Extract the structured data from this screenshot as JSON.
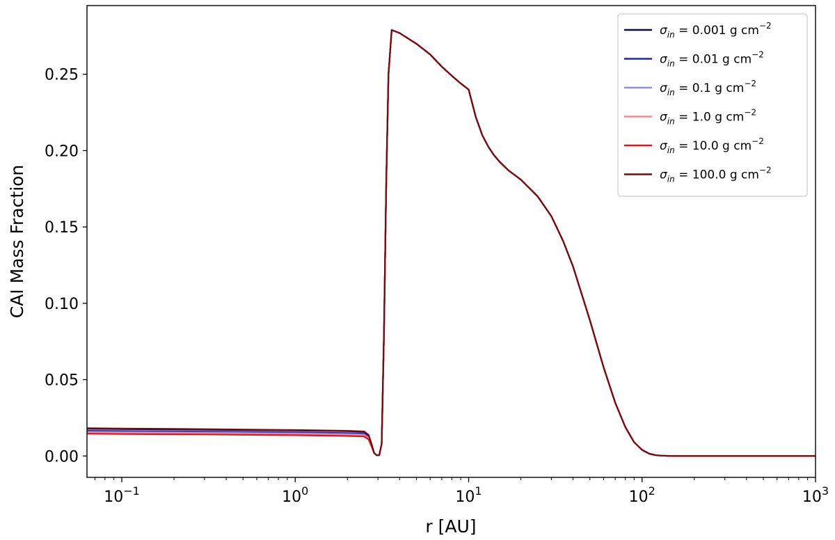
{
  "chart_data": {
    "type": "line",
    "title": "",
    "xlabel": "r [AU]",
    "ylabel": "CAI Mass Fraction",
    "xscale": "log",
    "xlim": [
      0.063,
      1000
    ],
    "ylim": [
      -0.014,
      0.295
    ],
    "grid": false,
    "legend_position": "top-right",
    "x_ticks": [
      {
        "value": 0.1,
        "base": "10",
        "exp": "−1"
      },
      {
        "value": 1,
        "base": "10",
        "exp": "0"
      },
      {
        "value": 10,
        "base": "10",
        "exp": "1"
      },
      {
        "value": 100,
        "base": "10",
        "exp": "2"
      },
      {
        "value": 1000,
        "base": "10",
        "exp": "3"
      }
    ],
    "y_ticks": [
      {
        "value": 0.0,
        "label": "0.00"
      },
      {
        "value": 0.05,
        "label": "0.05"
      },
      {
        "value": 0.1,
        "label": "0.10"
      },
      {
        "value": 0.15,
        "label": "0.15"
      },
      {
        "value": 0.2,
        "label": "0.20"
      },
      {
        "value": 0.25,
        "label": "0.25"
      }
    ],
    "shared_tail": {
      "x": [
        2.95,
        3.05,
        3.15,
        3.25,
        3.35,
        3.45,
        3.6,
        4.0,
        5.0,
        6.0,
        7.0,
        8.0,
        9.0,
        10.0,
        11.0,
        12.0,
        13.0,
        14.0,
        15.0,
        17.0,
        20.0,
        25.0,
        30.0,
        35.0,
        40.0,
        50.0,
        60.0,
        70.0,
        80.0,
        90.0,
        100.0,
        110.0,
        120.0,
        130.0,
        150.0,
        200.0,
        300.0,
        500.0,
        1000.0
      ],
      "y": [
        0.0005,
        0.0005,
        0.008,
        0.08,
        0.18,
        0.25,
        0.279,
        0.277,
        0.27,
        0.263,
        0.255,
        0.249,
        0.244,
        0.24,
        0.222,
        0.21,
        0.2025,
        0.197,
        0.193,
        0.187,
        0.181,
        0.17,
        0.157,
        0.141,
        0.124,
        0.089,
        0.058,
        0.035,
        0.019,
        0.009,
        0.004,
        0.0015,
        0.0005,
        0.0002,
        0.0,
        0.0,
        0.0,
        0.0,
        0.0
      ]
    },
    "series": [
      {
        "name": "σ_in = 0.001 g cm^−2",
        "label_main": "0.001",
        "color": "#0a0a3c",
        "x": [
          0.063,
          0.1,
          0.3,
          1.0,
          2.0,
          2.5,
          2.65,
          2.75,
          2.85,
          2.95
        ],
        "y": [
          0.0178,
          0.0176,
          0.0172,
          0.0167,
          0.0162,
          0.0158,
          0.0135,
          0.008,
          0.002,
          0.0005
        ]
      },
      {
        "name": "σ_in = 0.01 g cm^−2",
        "label_main": "0.01",
        "color": "#1a22c8",
        "x": [
          0.063,
          0.1,
          0.3,
          1.0,
          2.0,
          2.5,
          2.65,
          2.75,
          2.85,
          2.95
        ],
        "y": [
          0.0165,
          0.0163,
          0.016,
          0.0155,
          0.015,
          0.0147,
          0.0125,
          0.0075,
          0.002,
          0.0005
        ]
      },
      {
        "name": "σ_in = 0.1 g cm^−2",
        "label_main": "0.1",
        "color": "#8c8cee",
        "x": [
          0.063,
          0.1,
          0.3,
          1.0,
          2.0,
          2.5,
          2.65,
          2.75,
          2.85,
          2.95
        ],
        "y": [
          0.0158,
          0.0156,
          0.0153,
          0.0148,
          0.0143,
          0.014,
          0.0118,
          0.007,
          0.002,
          0.0005
        ]
      },
      {
        "name": "σ_in = 1.0 g cm^−2",
        "label_main": "1.0",
        "color": "#f08c8c",
        "x": [
          0.063,
          0.1,
          0.3,
          1.0,
          2.0,
          2.5,
          2.65,
          2.75,
          2.85,
          2.95
        ],
        "y": [
          0.0154,
          0.0152,
          0.0149,
          0.0144,
          0.0139,
          0.0136,
          0.0115,
          0.0068,
          0.002,
          0.0005
        ]
      },
      {
        "name": "σ_in = 10.0 g cm^−2",
        "label_main": "10.0",
        "color": "#e01414",
        "x": [
          0.063,
          0.1,
          0.3,
          1.0,
          2.0,
          2.5,
          2.65,
          2.75,
          2.85,
          2.95
        ],
        "y": [
          0.0146,
          0.0144,
          0.0141,
          0.0136,
          0.0131,
          0.0128,
          0.0108,
          0.0064,
          0.002,
          0.0005
        ]
      },
      {
        "name": "σ_in = 100.0 g cm^−2",
        "label_main": "100.0",
        "color": "#7a0a0a",
        "x": [
          0.063,
          0.1,
          0.3,
          1.0,
          2.0,
          2.5,
          2.65,
          2.75,
          2.85,
          2.95
        ],
        "y": [
          0.0182,
          0.018,
          0.0176,
          0.017,
          0.0165,
          0.0161,
          0.0138,
          0.0082,
          0.002,
          0.0005
        ]
      }
    ],
    "legend": {
      "symbol": "σ",
      "subscript": "in",
      "equals": " = ",
      "unit": " g cm",
      "unit_exp": "−2"
    }
  }
}
